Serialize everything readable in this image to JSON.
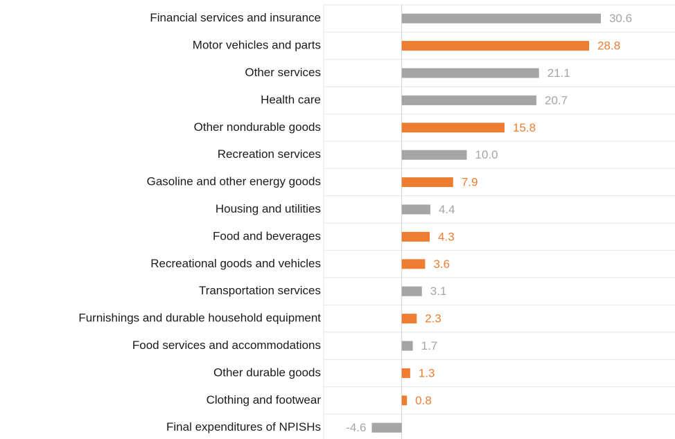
{
  "chart_data": {
    "type": "bar",
    "orientation": "horizontal",
    "categories": [
      "Financial services and insurance",
      "Motor vehicles and parts",
      "Other services",
      "Health care",
      "Other nondurable goods",
      "Recreation services",
      "Gasoline and other energy goods",
      "Housing and utilities",
      "Food and beverages",
      "Recreational goods and vehicles",
      "Transportation services",
      "Furnishings and durable household equipment",
      "Food services and accommodations",
      "Other durable goods",
      "Clothing and footwear",
      "Final expenditures of NPISHs"
    ],
    "values": [
      30.6,
      28.8,
      21.1,
      20.7,
      15.8,
      10.0,
      7.9,
      4.4,
      4.3,
      3.6,
      3.1,
      2.3,
      1.7,
      1.3,
      0.8,
      -4.6
    ],
    "value_labels": [
      "30.6",
      "28.8",
      "21.1",
      "20.7",
      "15.8",
      "10.0",
      "7.9",
      "4.4",
      "4.3",
      "3.6",
      "3.1",
      "2.3",
      "1.7",
      "1.3",
      "0.8",
      "-4.6"
    ],
    "colors": [
      "#a5a5a5",
      "#ed7d31",
      "#a5a5a5",
      "#a5a5a5",
      "#ed7d31",
      "#a5a5a5",
      "#ed7d31",
      "#a5a5a5",
      "#ed7d31",
      "#ed7d31",
      "#a5a5a5",
      "#ed7d31",
      "#a5a5a5",
      "#ed7d31",
      "#ed7d31",
      "#a5a5a5"
    ],
    "xlim": [
      -12,
      42
    ]
  }
}
